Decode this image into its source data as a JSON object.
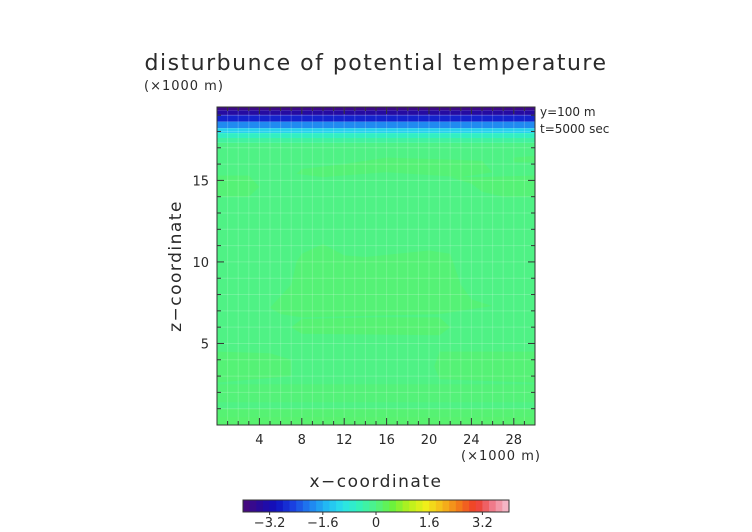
{
  "chart_data": {
    "type": "heatmap",
    "title": "disturbunce of potential temperature",
    "xlabel": "x−coordinate",
    "ylabel": "z−coordinate",
    "x_unit": "(×1000 m)",
    "y_unit": "(×1000 m)",
    "info_lines": [
      "y=100 m",
      "t=5000 sec"
    ],
    "xlim": [
      0,
      30
    ],
    "ylim": [
      0,
      19.5
    ],
    "x_ticks": [
      4,
      8,
      12,
      16,
      20,
      24,
      28
    ],
    "y_ticks": [
      5,
      10,
      15
    ],
    "colorbar": {
      "range": [
        -4,
        4
      ],
      "ticks": [
        -3.2,
        -1.6,
        0,
        1.6,
        3.2
      ],
      "tick_labels": [
        "−3.2",
        "−1.6",
        "0",
        "1.6",
        "3.2"
      ],
      "colors": [
        "#4a0a7a",
        "#2a0a9a",
        "#1010c0",
        "#1a40e0",
        "#1f7ff0",
        "#22b8f4",
        "#2ae3ea",
        "#34f2b8",
        "#4ff285",
        "#6cf23c",
        "#b8f01c",
        "#f0ee1a",
        "#f6b81a",
        "#f37a1a",
        "#ee3a2a",
        "#f07a8a",
        "#f6c4d4"
      ]
    },
    "bands": [
      {
        "z_min": 19.3,
        "z_max": 19.5,
        "value": -3.8
      },
      {
        "z_min": 19.0,
        "z_max": 19.3,
        "value": -3.4
      },
      {
        "z_min": 18.6,
        "z_max": 19.0,
        "value": -2.8
      },
      {
        "z_min": 18.2,
        "z_max": 18.6,
        "value": -1.9
      },
      {
        "z_min": 17.9,
        "z_max": 18.2,
        "value": -1.2
      },
      {
        "z_min": 17.6,
        "z_max": 17.9,
        "value": -0.6
      },
      {
        "z_min": 17.3,
        "z_max": 17.6,
        "value": -0.25
      },
      {
        "z_min": 0,
        "z_max": 17.3,
        "value": 0.0
      }
    ],
    "regions": [
      {
        "value": 0.15,
        "polygon": [
          [
            0,
            0
          ],
          [
            30,
            0
          ],
          [
            30,
            0.5
          ],
          [
            0,
            0.5
          ]
        ]
      },
      {
        "value": 0.12,
        "polygon": [
          [
            0,
            0.5
          ],
          [
            30,
            0.5
          ],
          [
            30,
            1.0
          ],
          [
            0,
            1.0
          ]
        ]
      },
      {
        "value": 0.1,
        "polygon": [
          [
            8,
            15.7
          ],
          [
            12,
            16.0
          ],
          [
            16,
            16.4
          ],
          [
            21,
            16.3
          ],
          [
            25,
            16.2
          ],
          [
            26,
            15.5
          ],
          [
            23,
            15.2
          ],
          [
            16,
            15.5
          ],
          [
            10,
            15.2
          ],
          [
            7.5,
            15.4
          ]
        ]
      },
      {
        "value": 0.1,
        "polygon": [
          [
            0,
            15.3
          ],
          [
            3,
            15.3
          ],
          [
            4,
            14.6
          ],
          [
            3,
            14.0
          ],
          [
            0,
            14.0
          ]
        ]
      },
      {
        "value": 0.1,
        "polygon": [
          [
            22,
            15.2
          ],
          [
            25,
            15.2
          ],
          [
            30,
            15.3
          ],
          [
            30,
            14.0
          ],
          [
            27,
            14.0
          ],
          [
            25,
            14.3
          ],
          [
            24,
            14.8
          ]
        ]
      },
      {
        "value": 0.1,
        "polygon": [
          [
            28,
            16.1
          ],
          [
            30,
            16.1
          ],
          [
            30,
            16.5
          ],
          [
            28,
            16.4
          ]
        ]
      },
      {
        "value": 0.1,
        "polygon": [
          [
            5,
            7.2
          ],
          [
            7,
            8.6
          ],
          [
            7.5,
            10
          ],
          [
            8,
            10.5
          ],
          [
            10,
            11.1
          ],
          [
            12,
            10.4
          ],
          [
            14,
            10.3
          ],
          [
            17,
            10.5
          ],
          [
            20,
            10.7
          ],
          [
            22,
            10.5
          ],
          [
            23,
            8.6
          ],
          [
            24,
            7.7
          ],
          [
            26,
            7.3
          ],
          [
            23,
            7.0
          ],
          [
            21,
            6.8
          ],
          [
            8,
            6.6
          ],
          [
            6,
            6.8
          ]
        ]
      },
      {
        "value": 0.12,
        "polygon": [
          [
            8,
            6.5
          ],
          [
            15,
            6.6
          ],
          [
            21,
            6.6
          ],
          [
            22,
            6.0
          ],
          [
            21,
            5.5
          ],
          [
            8,
            5.6
          ],
          [
            7,
            6.0
          ]
        ]
      },
      {
        "value": 0.1,
        "polygon": [
          [
            0,
            4.5
          ],
          [
            5,
            4.4
          ],
          [
            7,
            4.0
          ],
          [
            7,
            3.0
          ],
          [
            0,
            2.6
          ]
        ]
      },
      {
        "value": 0.1,
        "polygon": [
          [
            21,
            4.5
          ],
          [
            30,
            4.5
          ],
          [
            30,
            2.6
          ],
          [
            21,
            2.8
          ],
          [
            20.5,
            3.6
          ]
        ]
      },
      {
        "value": 0.08,
        "polygon": [
          [
            0,
            2.5
          ],
          [
            30,
            2.5
          ],
          [
            30,
            1.4
          ],
          [
            0,
            1.4
          ]
        ]
      }
    ]
  }
}
